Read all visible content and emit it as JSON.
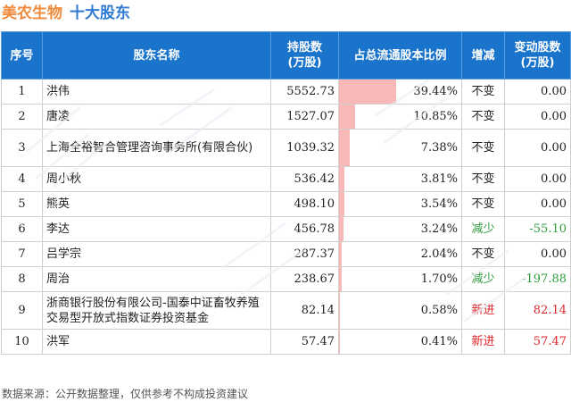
{
  "title": {
    "company": "美农生物",
    "subtitle": "十大股东"
  },
  "table": {
    "headers": {
      "index": "序号",
      "name": "股东名称",
      "holding": "持股数\n(万股)",
      "ratio": "占总流通股本比例",
      "change_type": "增减",
      "change_amount": "变动股数\n(万股)"
    },
    "rows": [
      {
        "index": "1",
        "name": "洪伟",
        "holding": "5552.73",
        "ratio_pct": 39.44,
        "ratio": "39.44%",
        "change_type": "不变",
        "change_amount": "0.00"
      },
      {
        "index": "2",
        "name": "唐凌",
        "holding": "1527.07",
        "ratio_pct": 10.85,
        "ratio": "10.85%",
        "change_type": "不变",
        "change_amount": "0.00"
      },
      {
        "index": "3",
        "name": "上海全裕智合管理咨询事务所(有限合伙)",
        "holding": "1039.32",
        "ratio_pct": 7.38,
        "ratio": "7.38%",
        "change_type": "不变",
        "change_amount": "0.00"
      },
      {
        "index": "4",
        "name": "周小秋",
        "holding": "536.42",
        "ratio_pct": 3.81,
        "ratio": "3.81%",
        "change_type": "不变",
        "change_amount": "0.00"
      },
      {
        "index": "5",
        "name": "熊英",
        "holding": "498.10",
        "ratio_pct": 3.54,
        "ratio": "3.54%",
        "change_type": "不变",
        "change_amount": "0.00"
      },
      {
        "index": "6",
        "name": "李达",
        "holding": "456.78",
        "ratio_pct": 3.24,
        "ratio": "3.24%",
        "change_type": "减少",
        "change_amount": "-55.10"
      },
      {
        "index": "7",
        "name": "吕学宗",
        "holding": "287.37",
        "ratio_pct": 2.04,
        "ratio": "2.04%",
        "change_type": "不变",
        "change_amount": "0.00"
      },
      {
        "index": "8",
        "name": "周治",
        "holding": "238.67",
        "ratio_pct": 1.7,
        "ratio": "1.70%",
        "change_type": "减少",
        "change_amount": "-197.88"
      },
      {
        "index": "9",
        "name": "浙商银行股份有限公司-国泰中证畜牧养殖交易型开放式指数证券投资基金",
        "holding": "82.14",
        "ratio_pct": 0.58,
        "ratio": "0.58%",
        "change_type": "新进",
        "change_amount": "82.14"
      },
      {
        "index": "10",
        "name": "洪军",
        "holding": "57.47",
        "ratio_pct": 0.41,
        "ratio": "0.41%",
        "change_type": "新进",
        "change_amount": "57.47"
      }
    ]
  },
  "footer": "数据来源：公开数据整理，仅供参考不构成投资建议",
  "colors": {
    "header_bg": "#1a74cc",
    "bar": "#f8b8b8",
    "decrease": "#2e9b3a",
    "new": "#e0242a",
    "title_company": "#f08a3c",
    "title_sub": "#2f7bd1"
  }
}
